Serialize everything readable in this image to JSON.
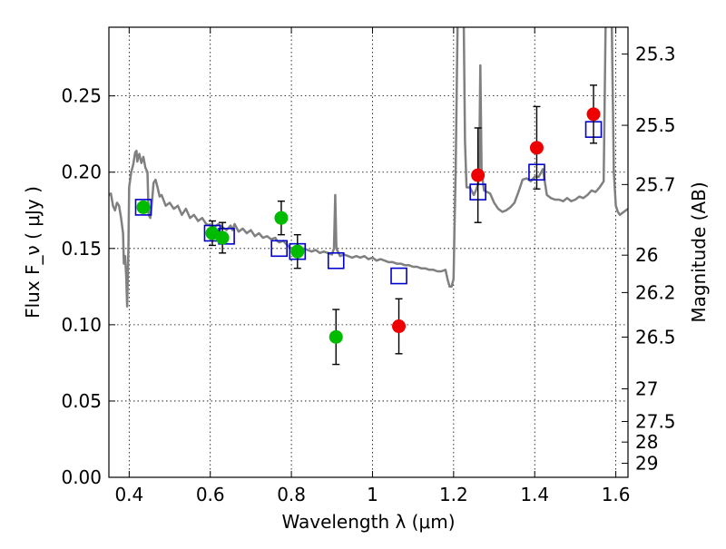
{
  "chart_data": {
    "type": "scatter",
    "title": "",
    "xlabel": "Wavelength  λ (μm)",
    "ylabel": "Flux  F_ν  ( μJy )",
    "y2label": "Magnitude (AB)",
    "xlim": [
      0.35,
      1.63
    ],
    "ylim": [
      0.0,
      0.295
    ],
    "grid": true,
    "legend": "none",
    "x_ticks": [
      0.4,
      0.6,
      0.8,
      1.0,
      1.2,
      1.4,
      1.6
    ],
    "x_tick_labels": [
      "0.4",
      "0.6",
      "0.8",
      "1",
      "1.2",
      "1.4",
      "1.6"
    ],
    "y_ticks": [
      0.0,
      0.05,
      0.1,
      0.15,
      0.2,
      0.25
    ],
    "y_tick_labels": [
      "0.00",
      "0.05",
      "0.10",
      "0.15",
      "0.20",
      "0.25"
    ],
    "y2_ticks": [
      {
        "label": "25.3",
        "flux": 0.2774
      },
      {
        "label": "25.5",
        "flux": 0.2307
      },
      {
        "label": "25.7",
        "flux": 0.1919
      },
      {
        "label": "26",
        "flux": 0.1456
      },
      {
        "label": "26.2",
        "flux": 0.1211
      },
      {
        "label": "26.5",
        "flux": 0.0919
      },
      {
        "label": "27",
        "flux": 0.058
      },
      {
        "label": "27.5",
        "flux": 0.0366
      },
      {
        "label": "28",
        "flux": 0.0231
      },
      {
        "label": "29",
        "flux": 0.0092
      }
    ],
    "series": [
      {
        "marker": "line",
        "color": "#808080",
        "points": [
          [
            0.35,
            0.185
          ],
          [
            0.355,
            0.186
          ],
          [
            0.36,
            0.178
          ],
          [
            0.365,
            0.175
          ],
          [
            0.37,
            0.18
          ],
          [
            0.375,
            0.178
          ],
          [
            0.38,
            0.17
          ],
          [
            0.385,
            0.16
          ],
          [
            0.387,
            0.14
          ],
          [
            0.39,
            0.145
          ],
          [
            0.393,
            0.13
          ],
          [
            0.395,
            0.112
          ],
          [
            0.398,
            0.15
          ],
          [
            0.4,
            0.19
          ],
          [
            0.405,
            0.2
          ],
          [
            0.41,
            0.205
          ],
          [
            0.415,
            0.213
          ],
          [
            0.418,
            0.214
          ],
          [
            0.42,
            0.207
          ],
          [
            0.425,
            0.212
          ],
          [
            0.43,
            0.206
          ],
          [
            0.435,
            0.21
          ],
          [
            0.44,
            0.203
          ],
          [
            0.445,
            0.2
          ],
          [
            0.448,
            0.172
          ],
          [
            0.452,
            0.17
          ],
          [
            0.456,
            0.18
          ],
          [
            0.46,
            0.193
          ],
          [
            0.465,
            0.195
          ],
          [
            0.47,
            0.19
          ],
          [
            0.475,
            0.184
          ],
          [
            0.48,
            0.185
          ],
          [
            0.49,
            0.178
          ],
          [
            0.5,
            0.18
          ],
          [
            0.51,
            0.176
          ],
          [
            0.52,
            0.178
          ],
          [
            0.53,
            0.172
          ],
          [
            0.54,
            0.176
          ],
          [
            0.55,
            0.17
          ],
          [
            0.56,
            0.172
          ],
          [
            0.57,
            0.168
          ],
          [
            0.58,
            0.17
          ],
          [
            0.59,
            0.166
          ],
          [
            0.6,
            0.165
          ],
          [
            0.61,
            0.164
          ],
          [
            0.62,
            0.166
          ],
          [
            0.63,
            0.164
          ],
          [
            0.64,
            0.162
          ],
          [
            0.65,
            0.165
          ],
          [
            0.655,
            0.162
          ],
          [
            0.66,
            0.166
          ],
          [
            0.67,
            0.161
          ],
          [
            0.68,
            0.163
          ],
          [
            0.69,
            0.16
          ],
          [
            0.7,
            0.162
          ],
          [
            0.71,
            0.158
          ],
          [
            0.72,
            0.16
          ],
          [
            0.73,
            0.157
          ],
          [
            0.74,
            0.158
          ],
          [
            0.75,
            0.156
          ],
          [
            0.76,
            0.157
          ],
          [
            0.765,
            0.155
          ],
          [
            0.77,
            0.154
          ],
          [
            0.78,
            0.155
          ],
          [
            0.79,
            0.152
          ],
          [
            0.8,
            0.15
          ],
          [
            0.81,
            0.151
          ],
          [
            0.82,
            0.149
          ],
          [
            0.83,
            0.15
          ],
          [
            0.84,
            0.149
          ],
          [
            0.85,
            0.148
          ],
          [
            0.86,
            0.149
          ],
          [
            0.87,
            0.147
          ],
          [
            0.88,
            0.148
          ],
          [
            0.89,
            0.147
          ],
          [
            0.9,
            0.146
          ],
          [
            0.905,
            0.15
          ],
          [
            0.908,
            0.185
          ],
          [
            0.911,
            0.15
          ],
          [
            0.92,
            0.145
          ],
          [
            0.93,
            0.146
          ],
          [
            0.94,
            0.145
          ],
          [
            0.95,
            0.144
          ],
          [
            0.96,
            0.145
          ],
          [
            0.97,
            0.144
          ],
          [
            0.98,
            0.145
          ],
          [
            0.99,
            0.143
          ],
          [
            1.0,
            0.144
          ],
          [
            1.01,
            0.142
          ],
          [
            1.02,
            0.143
          ],
          [
            1.03,
            0.142
          ],
          [
            1.04,
            0.141
          ],
          [
            1.05,
            0.141
          ],
          [
            1.06,
            0.14
          ],
          [
            1.07,
            0.14
          ],
          [
            1.08,
            0.139
          ],
          [
            1.09,
            0.139
          ],
          [
            1.1,
            0.138
          ],
          [
            1.11,
            0.138
          ],
          [
            1.12,
            0.137
          ],
          [
            1.13,
            0.137
          ],
          [
            1.14,
            0.136
          ],
          [
            1.15,
            0.136
          ],
          [
            1.16,
            0.135
          ],
          [
            1.17,
            0.135
          ],
          [
            1.18,
            0.136
          ],
          [
            1.185,
            0.13
          ],
          [
            1.19,
            0.125
          ],
          [
            1.195,
            0.125
          ],
          [
            1.2,
            0.13
          ],
          [
            1.202,
            0.16
          ],
          [
            1.205,
            0.2
          ],
          [
            1.208,
            0.26
          ],
          [
            1.21,
            0.3
          ],
          [
            1.22,
            0.3
          ],
          [
            1.225,
            0.3
          ],
          [
            1.228,
            0.22
          ],
          [
            1.232,
            0.19
          ],
          [
            1.24,
            0.19
          ],
          [
            1.25,
            0.185
          ],
          [
            1.255,
            0.188
          ],
          [
            1.26,
            0.192
          ],
          [
            1.263,
            0.2
          ],
          [
            1.266,
            0.27
          ],
          [
            1.269,
            0.2
          ],
          [
            1.275,
            0.188
          ],
          [
            1.29,
            0.186
          ],
          [
            1.3,
            0.18
          ],
          [
            1.31,
            0.176
          ],
          [
            1.32,
            0.174
          ],
          [
            1.33,
            0.175
          ],
          [
            1.34,
            0.177
          ],
          [
            1.35,
            0.18
          ],
          [
            1.36,
            0.187
          ],
          [
            1.37,
            0.195
          ],
          [
            1.38,
            0.196
          ],
          [
            1.39,
            0.194
          ],
          [
            1.4,
            0.197
          ],
          [
            1.41,
            0.197
          ],
          [
            1.42,
            0.202
          ],
          [
            1.43,
            0.185
          ],
          [
            1.44,
            0.183
          ],
          [
            1.45,
            0.182
          ],
          [
            1.46,
            0.182
          ],
          [
            1.47,
            0.181
          ],
          [
            1.48,
            0.183
          ],
          [
            1.49,
            0.181
          ],
          [
            1.5,
            0.182
          ],
          [
            1.51,
            0.184
          ],
          [
            1.52,
            0.183
          ],
          [
            1.53,
            0.185
          ],
          [
            1.54,
            0.188
          ],
          [
            1.55,
            0.187
          ],
          [
            1.56,
            0.19
          ],
          [
            1.57,
            0.194
          ],
          [
            1.575,
            0.3
          ],
          [
            1.59,
            0.3
          ],
          [
            1.595,
            0.2
          ],
          [
            1.6,
            0.178
          ],
          [
            1.605,
            0.174
          ],
          [
            1.61,
            0.172
          ],
          [
            1.62,
            0.174
          ],
          [
            1.63,
            0.176
          ]
        ]
      },
      {
        "marker": "open-square",
        "color": "#0000cc",
        "points": [
          [
            0.435,
            0.177
          ],
          [
            0.605,
            0.16
          ],
          [
            0.64,
            0.158
          ],
          [
            0.77,
            0.15
          ],
          [
            0.815,
            0.148
          ],
          [
            0.91,
            0.142
          ],
          [
            1.065,
            0.132
          ],
          [
            1.26,
            0.187
          ],
          [
            1.405,
            0.2
          ],
          [
            1.545,
            0.228
          ]
        ]
      },
      {
        "marker": "filled-circle",
        "color": "#00bb00",
        "points": [
          {
            "x": 0.435,
            "y": 0.177,
            "err": null
          },
          {
            "x": 0.605,
            "y": 0.16,
            "err": 0.008
          },
          {
            "x": 0.63,
            "y": 0.157,
            "err": 0.01
          },
          {
            "x": 0.775,
            "y": 0.17,
            "err": 0.011
          },
          {
            "x": 0.815,
            "y": 0.148,
            "err": 0.011
          },
          {
            "x": 0.91,
            "y": 0.092,
            "err": 0.018
          }
        ]
      },
      {
        "marker": "filled-circle",
        "color": "#ee0000",
        "points": [
          {
            "x": 1.065,
            "y": 0.099,
            "err": 0.018
          },
          {
            "x": 1.26,
            "y": 0.198,
            "err": 0.031
          },
          {
            "x": 1.405,
            "y": 0.216,
            "err": 0.027
          },
          {
            "x": 1.545,
            "y": 0.238,
            "err": 0.019
          }
        ]
      }
    ]
  }
}
